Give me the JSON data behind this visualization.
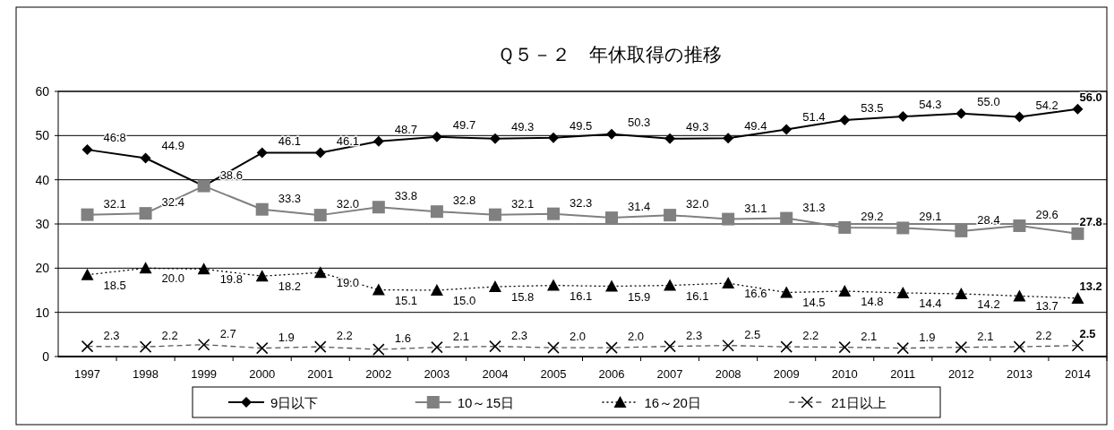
{
  "chart_data": {
    "type": "line",
    "title": "Ｑ５－２　年休取得の推移",
    "categories": [
      "1997",
      "1998",
      "1999",
      "2000",
      "2001",
      "2002",
      "2003",
      "2004",
      "2005",
      "2006",
      "2007",
      "2008",
      "2009",
      "2010",
      "2011",
      "2012",
      "2013",
      "2014"
    ],
    "series": [
      {
        "name": "9日以下",
        "color": "#000000",
        "marker": "diamond",
        "line_style": "solid",
        "values": [
          46.8,
          44.9,
          38.6,
          46.1,
          46.1,
          48.7,
          49.7,
          49.3,
          49.5,
          50.3,
          49.3,
          49.4,
          51.4,
          53.5,
          54.3,
          55.0,
          54.2,
          56.0
        ],
        "value_labels": [
          "46.8",
          "44.9",
          null,
          "46.1",
          "46.1",
          "48.7",
          "49.7",
          "49.3",
          "49.5",
          "50.3",
          "49.3",
          "49.4",
          "51.4",
          "53.5",
          "54.3",
          "55.0",
          "54.2",
          "56.0"
        ]
      },
      {
        "name": "10～15日",
        "color": "#808080",
        "marker": "square",
        "line_style": "solid",
        "values": [
          32.1,
          32.4,
          38.6,
          33.3,
          32.0,
          33.8,
          32.8,
          32.1,
          32.3,
          31.4,
          32.0,
          31.1,
          31.3,
          29.2,
          29.1,
          28.4,
          29.6,
          27.8
        ],
        "value_labels": [
          "32.1",
          "32.4",
          "38.6",
          "33.3",
          "32.0",
          "33.8",
          "32.8",
          "32.1",
          "32.3",
          "31.4",
          "32.0",
          "31.1",
          "31.3",
          "29.2",
          "29.1",
          "28.4",
          "29.6",
          "27.8"
        ]
      },
      {
        "name": "16～20日",
        "color": "#000000",
        "marker": "triangle",
        "line_style": "dotted",
        "values": [
          18.5,
          20.0,
          19.8,
          18.2,
          19.0,
          15.1,
          15.0,
          15.8,
          16.1,
          15.9,
          16.1,
          16.6,
          14.5,
          14.8,
          14.4,
          14.2,
          13.7,
          13.2
        ],
        "value_labels": [
          "18.5",
          "20.0",
          "19.8",
          "18.2",
          "19.0",
          "15.1",
          "15.0",
          "15.8",
          "16.1",
          "15.9",
          "16.1",
          "16.6",
          "14.5",
          "14.8",
          "14.4",
          "14.2",
          "13.7",
          "13.2"
        ]
      },
      {
        "name": "21日以上",
        "color": "#555555",
        "marker": "cross",
        "line_style": "dashed",
        "values": [
          2.3,
          2.2,
          2.7,
          1.9,
          2.2,
          1.6,
          2.1,
          2.3,
          2.0,
          2.0,
          2.3,
          2.5,
          2.2,
          2.1,
          1.9,
          2.1,
          2.2,
          2.5
        ],
        "value_labels": [
          "2.3",
          "2.2",
          "2.7",
          "1.9",
          "2.2",
          "1.6",
          "2.1",
          "2.3",
          "2.0",
          "2.0",
          "2.3",
          "2.5",
          "2.2",
          "2.1",
          "1.9",
          "2.1",
          "2.2",
          "2.5"
        ]
      }
    ],
    "ylim": [
      0,
      60
    ],
    "yticks": [
      0,
      10,
      20,
      30,
      40,
      50,
      60
    ],
    "grid": "y",
    "legend": "bottom"
  }
}
